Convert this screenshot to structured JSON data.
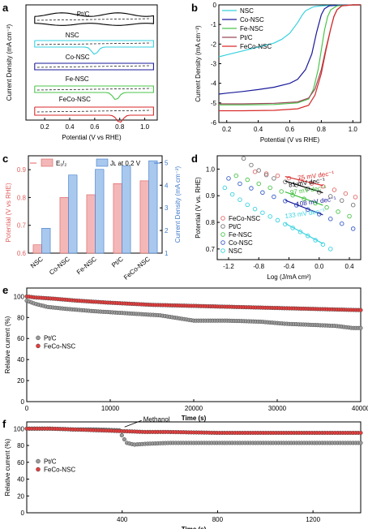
{
  "chart_data": [
    {
      "panel": "a",
      "type": "line",
      "xlabel": "Potential (V vs RHE)",
      "ylabel": "Current Density (mA cm⁻²)",
      "xlim": [
        0.05,
        1.1
      ],
      "xticks": [
        "0.2",
        "0.4",
        "0.6",
        "0.8",
        "1.0"
      ],
      "curve_labels": [
        "Pt/C",
        "NSC",
        "Co-NSC",
        "Fe-NSC",
        "FeCo-NSC"
      ],
      "colors": [
        "#000000",
        "#36d2e0",
        "#1a1a9a",
        "#4cc44c",
        "#d82a2a"
      ],
      "peaks": [
        null,
        0.6,
        null,
        0.77,
        0.8
      ]
    },
    {
      "panel": "b",
      "type": "line",
      "xlabel": "Potential (V vs RHE)",
      "ylabel": "Current Density (mA cm⁻²)",
      "xlim": [
        0.15,
        1.05
      ],
      "ylim": [
        -6,
        0
      ],
      "xticks": [
        0.2,
        0.4,
        0.6,
        0.8,
        1.0
      ],
      "yticks": [
        0,
        -1,
        -2,
        -3,
        -4,
        -5,
        -6
      ],
      "legend": "top-left",
      "series": [
        {
          "name": "NSC",
          "color": "#36d2e0",
          "x": [
            0.15,
            0.2,
            0.3,
            0.4,
            0.5,
            0.55,
            0.6,
            0.65,
            0.68,
            0.7,
            0.75,
            0.8,
            0.9,
            1.0,
            1.05
          ],
          "y": [
            -2.65,
            -2.55,
            -2.35,
            -2.15,
            -1.95,
            -1.75,
            -1.45,
            -0.9,
            -0.5,
            -0.3,
            -0.1,
            -0.05,
            -0.02,
            -0.01,
            0
          ]
        },
        {
          "name": "Co-NSC",
          "color": "#1a1a9a",
          "x": [
            0.15,
            0.2,
            0.3,
            0.4,
            0.5,
            0.6,
            0.65,
            0.7,
            0.74,
            0.77,
            0.8,
            0.82,
            0.85,
            0.9,
            1.0,
            1.05
          ],
          "y": [
            -4.55,
            -4.5,
            -4.42,
            -4.32,
            -4.2,
            -4.0,
            -3.8,
            -3.3,
            -2.5,
            -1.4,
            -0.5,
            -0.2,
            -0.05,
            -0.02,
            0,
            0
          ]
        },
        {
          "name": "Fe-NSC",
          "color": "#4cc44c",
          "x": [
            0.15,
            0.3,
            0.5,
            0.65,
            0.72,
            0.75,
            0.78,
            0.8,
            0.82,
            0.84,
            0.86,
            0.9,
            1.0,
            1.05
          ],
          "y": [
            -5.1,
            -5.1,
            -5.08,
            -5.0,
            -4.8,
            -4.3,
            -3.3,
            -2.3,
            -1.3,
            -0.6,
            -0.25,
            -0.05,
            0,
            0
          ]
        },
        {
          "name": "Pt/C",
          "color": "#9a4a5a",
          "x": [
            0.15,
            0.3,
            0.5,
            0.65,
            0.72,
            0.76,
            0.8,
            0.83,
            0.86,
            0.88,
            0.9,
            0.93,
            1.0,
            1.05
          ],
          "y": [
            -5.05,
            -5.05,
            -5.02,
            -4.95,
            -4.75,
            -4.3,
            -3.3,
            -2.2,
            -1.2,
            -0.6,
            -0.25,
            -0.05,
            0,
            0
          ]
        },
        {
          "name": "FeCo-NSC",
          "color": "#d82a2a",
          "x": [
            0.15,
            0.3,
            0.5,
            0.65,
            0.72,
            0.76,
            0.8,
            0.83,
            0.86,
            0.88,
            0.9,
            0.93,
            1.0,
            1.05
          ],
          "y": [
            -5.4,
            -5.4,
            -5.38,
            -5.3,
            -5.12,
            -4.6,
            -3.5,
            -2.3,
            -1.2,
            -0.6,
            -0.25,
            -0.05,
            0,
            0
          ]
        }
      ]
    },
    {
      "panel": "c",
      "type": "bar",
      "categories": [
        "NSC",
        "Co-NSC",
        "Fe-NSC",
        "Pt/C",
        "FeCo-NSC"
      ],
      "ylabel": "Potential (V vs RHE)",
      "ylabel_right": "Current Density (mA cm⁻²)",
      "ylim": [
        0.6,
        0.95
      ],
      "ylim_right": [
        1,
        5.3
      ],
      "yticks": [
        "0.6",
        "0.7",
        "0.8",
        "0.9"
      ],
      "yticks_right": [
        "1",
        "2",
        "3",
        "4",
        "5"
      ],
      "legend": "top",
      "series": [
        {
          "name": "E₁/₂",
          "color": "#f4b7b7",
          "stroke": "#d95c5c",
          "axis": "left",
          "values": [
            0.63,
            0.8,
            0.81,
            0.85,
            0.86
          ]
        },
        {
          "name": "Jʟ at 0.2 V",
          "color": "#a9c8ee",
          "stroke": "#3e7ac8",
          "axis": "right",
          "values": [
            2.1,
            4.45,
            4.7,
            4.85,
            5.08
          ]
        }
      ]
    },
    {
      "panel": "d",
      "type": "scatter",
      "xlabel": "Log (J/mA cm²)",
      "ylabel": "Potential (V vs. RHE)",
      "xlim": [
        -1.35,
        0.55
      ],
      "ylim": [
        0.66,
        1.05
      ],
      "xticks": [
        "-1.2",
        "-0.8",
        "-0.4",
        "0.0",
        "0.4"
      ],
      "yticks": [
        "0.7",
        "0.8",
        "0.9",
        "1.0"
      ],
      "legend": "bottom-left",
      "annotations": [
        {
          "text": "75 mV dec⁻¹",
          "color": "#d82a2a",
          "x": -0.28,
          "y": 0.958
        },
        {
          "text": "81 mV dec⁻¹",
          "color": "#000000",
          "x": -0.4,
          "y": 0.932
        },
        {
          "text": "97 mV dec⁻¹",
          "color": "#3cbf3c",
          "x": -0.38,
          "y": 0.904
        },
        {
          "text": "108 mV dec⁻¹",
          "color": "#1a1a9a",
          "x": -0.3,
          "y": 0.86
        },
        {
          "text": "133 mV dec⁻¹",
          "color": "#36d2e0",
          "x": -0.45,
          "y": 0.815
        }
      ],
      "series": [
        {
          "name": "FeCo-NSC",
          "color": "#e06a6a",
          "x": [
            -0.85,
            -0.7,
            -0.55,
            -0.4,
            -0.25,
            -0.1,
            0.05,
            0.2,
            0.35,
            0.48
          ],
          "y": [
            0.99,
            0.983,
            0.975,
            0.966,
            0.957,
            0.946,
            0.935,
            0.922,
            0.908,
            0.895
          ]
        },
        {
          "name": "Pt/C",
          "color": "#777777",
          "x": [
            -1.0,
            -0.9,
            -0.8,
            -0.7,
            -0.6,
            -0.45,
            -0.3,
            -0.15,
            0.0,
            0.15,
            0.3,
            0.45
          ],
          "y": [
            1.04,
            1.015,
            0.995,
            0.978,
            0.965,
            0.952,
            0.94,
            0.927,
            0.913,
            0.898,
            0.882,
            0.865
          ]
        },
        {
          "name": "Fe-NSC",
          "color": "#4cc44c",
          "x": [
            -1.1,
            -0.95,
            -0.8,
            -0.65,
            -0.5,
            -0.35,
            -0.2,
            -0.05,
            0.1,
            0.25,
            0.4
          ],
          "y": [
            0.975,
            0.96,
            0.945,
            0.93,
            0.916,
            0.902,
            0.888,
            0.872,
            0.856,
            0.84,
            0.823
          ]
        },
        {
          "name": "Co-NSC",
          "color": "#3a5fc8",
          "x": [
            -1.2,
            -1.05,
            -0.9,
            -0.75,
            -0.6,
            -0.45,
            -0.3,
            -0.15,
            0.0,
            0.15,
            0.3,
            0.45
          ],
          "y": [
            0.965,
            0.945,
            0.928,
            0.912,
            0.896,
            0.88,
            0.864,
            0.848,
            0.831,
            0.813,
            0.795,
            0.776
          ]
        },
        {
          "name": "NSC",
          "color": "#36d2e0",
          "x": [
            -1.25,
            -1.15,
            -1.05,
            -0.95,
            -0.85,
            -0.75,
            -0.65,
            -0.55,
            -0.45,
            -0.35,
            -0.25,
            -0.15,
            -0.05,
            0.05,
            0.15
          ],
          "y": [
            0.93,
            0.905,
            0.885,
            0.866,
            0.85,
            0.836,
            0.822,
            0.808,
            0.793,
            0.779,
            0.764,
            0.749,
            0.733,
            0.717,
            0.7
          ]
        }
      ]
    },
    {
      "panel": "e",
      "type": "scatter",
      "xlabel": "Time (s)",
      "ylabel": "Relative current (%)",
      "xlim": [
        0,
        40000
      ],
      "ylim": [
        0,
        108
      ],
      "xticks": [
        0,
        10000,
        20000,
        30000,
        40000
      ],
      "yticks": [
        0,
        20,
        40,
        60,
        80,
        100
      ],
      "legend": "left",
      "series": [
        {
          "name": "Pt/C",
          "color": "#9a9a9a",
          "x": [
            0,
            1000,
            2500,
            5000,
            8000,
            12000,
            16000,
            20000,
            24000,
            28000,
            31000,
            34000,
            37000,
            39000,
            40000
          ],
          "y": [
            96,
            93,
            90,
            88,
            86,
            84,
            82,
            77,
            77,
            76,
            74,
            73,
            72,
            70,
            70
          ]
        },
        {
          "name": "FeCo-NSC",
          "color": "#e83c3c",
          "x": [
            0,
            1000,
            3000,
            6000,
            10000,
            15000,
            20000,
            25000,
            30000,
            35000,
            40000
          ],
          "y": [
            100,
            99,
            98,
            96,
            94,
            92,
            91,
            90,
            89,
            88,
            87
          ]
        }
      ]
    },
    {
      "panel": "f",
      "type": "scatter",
      "xlabel": "Time (s)",
      "ylabel": "Relative current (%)",
      "xlim": [
        0,
        1400
      ],
      "ylim": [
        0,
        108
      ],
      "xticks": [
        400,
        800,
        1200
      ],
      "yticks": [
        0,
        20,
        40,
        60,
        80,
        100
      ],
      "legend": "left",
      "annotations": [
        {
          "text": "Methanol",
          "x": 400,
          "y": 100
        }
      ],
      "series": [
        {
          "name": "Pt/C",
          "color": "#9a9a9a",
          "x": [
            0,
            100,
            200,
            300,
            390,
            400,
            420,
            450,
            500,
            600,
            800,
            1000,
            1200,
            1400
          ],
          "y": [
            100,
            100,
            99,
            99,
            98,
            91,
            83,
            81,
            82,
            83,
            83,
            83,
            83,
            83
          ]
        },
        {
          "name": "FeCo-NSC",
          "color": "#e83c3c",
          "x": [
            0,
            100,
            200,
            300,
            400,
            500,
            600,
            800,
            1000,
            1200,
            1400
          ],
          "y": [
            100,
            100,
            99,
            98,
            97,
            96,
            96,
            95,
            95,
            95,
            95
          ]
        }
      ]
    }
  ]
}
